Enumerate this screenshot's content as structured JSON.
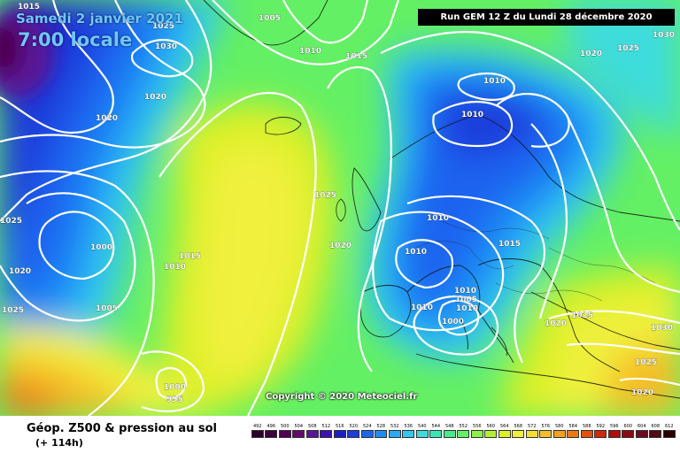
{
  "header": {
    "date": "Samedi 2 janvier 2021",
    "time": "7:00 locale",
    "run": "Run GEM 12 Z du Lundi 28 décembre 2020"
  },
  "copyright": "Copyright © 2020 Meteociel.fr",
  "footer": {
    "title": "Géop. Z500 & pression au sol",
    "subtitle": "(+ 114h)"
  },
  "legend_scale": [
    {
      "label": "492",
      "color": "#2a002a"
    },
    {
      "label": "496",
      "color": "#3c003c"
    },
    {
      "label": "500",
      "color": "#500050"
    },
    {
      "label": "504",
      "color": "#640a6e"
    },
    {
      "label": "508",
      "color": "#5a1496"
    },
    {
      "label": "512",
      "color": "#3c14b4"
    },
    {
      "label": "516",
      "color": "#1e1ec8"
    },
    {
      "label": "520",
      "color": "#1e3cdc"
    },
    {
      "label": "524",
      "color": "#1e64f0"
    },
    {
      "label": "528",
      "color": "#1e8cf5"
    },
    {
      "label": "532",
      "color": "#28aaf5"
    },
    {
      "label": "536",
      "color": "#32c8f0"
    },
    {
      "label": "540",
      "color": "#3cdcdc"
    },
    {
      "label": "544",
      "color": "#3ce6b4"
    },
    {
      "label": "548",
      "color": "#46eb8c"
    },
    {
      "label": "552",
      "color": "#64f064"
    },
    {
      "label": "556",
      "color": "#8cf046"
    },
    {
      "label": "560",
      "color": "#b4f032"
    },
    {
      "label": "564",
      "color": "#dcf028"
    },
    {
      "label": "568",
      "color": "#f0f03c"
    },
    {
      "label": "572",
      "color": "#f5dc32"
    },
    {
      "label": "576",
      "color": "#f5be28"
    },
    {
      "label": "580",
      "color": "#f5a01e"
    },
    {
      "label": "584",
      "color": "#f07814"
    },
    {
      "label": "588",
      "color": "#e6500a"
    },
    {
      "label": "592",
      "color": "#d2280a"
    },
    {
      "label": "596",
      "color": "#b40a0a"
    },
    {
      "label": "600",
      "color": "#8c0a14"
    },
    {
      "label": "604",
      "color": "#6e0a1e"
    },
    {
      "label": "608",
      "color": "#500a14"
    },
    {
      "label": "612",
      "color": "#280000"
    }
  ],
  "isobar_labels": [
    {
      "id": "iso-1015-a",
      "text": "1015"
    },
    {
      "id": "iso-1025-a",
      "text": "1025"
    },
    {
      "id": "iso-1030-a",
      "text": "1030"
    },
    {
      "id": "iso-1020-a",
      "text": "1020"
    },
    {
      "id": "iso-1020-b",
      "text": "1020"
    },
    {
      "id": "iso-1005-a",
      "text": "1005"
    },
    {
      "id": "iso-1010-a",
      "text": "1010"
    },
    {
      "id": "iso-1015-b",
      "text": "1015"
    },
    {
      "id": "iso-1020-c",
      "text": "1020"
    },
    {
      "id": "iso-1025-b",
      "text": "1025"
    },
    {
      "id": "iso-1030-b",
      "text": "1030"
    },
    {
      "id": "iso-1010-b",
      "text": "1010"
    },
    {
      "id": "iso-1010-c",
      "text": "1010"
    },
    {
      "id": "iso-1025-c",
      "text": "1025"
    },
    {
      "id": "iso-1020-d",
      "text": "1020"
    },
    {
      "id": "iso-1000-a",
      "text": "1000"
    },
    {
      "id": "iso-1015-c",
      "text": "1015"
    },
    {
      "id": "iso-1010-d",
      "text": "1010"
    },
    {
      "id": "iso-1025-d",
      "text": "1025"
    },
    {
      "id": "iso-1005-b",
      "text": "1005"
    },
    {
      "id": "iso-1025-e",
      "text": "1025"
    },
    {
      "id": "iso-1020-e",
      "text": "1020"
    },
    {
      "id": "iso-1010-e",
      "text": "1010"
    },
    {
      "id": "iso-1010-f",
      "text": "1010"
    },
    {
      "id": "iso-1015-d",
      "text": "1015"
    },
    {
      "id": "iso-1010-g",
      "text": "1010"
    },
    {
      "id": "iso-1010-h",
      "text": "1010"
    },
    {
      "id": "iso-1005-c",
      "text": "1005"
    },
    {
      "id": "iso-1010-i",
      "text": "1010"
    },
    {
      "id": "iso-1000-b",
      "text": "1000"
    },
    {
      "id": "iso-1025-f",
      "text": "1025"
    },
    {
      "id": "iso-1020-f",
      "text": "1020"
    },
    {
      "id": "iso-1030-c",
      "text": "1030"
    },
    {
      "id": "iso-1025-g",
      "text": "1025"
    },
    {
      "id": "iso-1020-g",
      "text": "1020"
    },
    {
      "id": "iso-1000-c",
      "text": "1000"
    },
    {
      "id": "iso-995",
      "text": "995"
    }
  ]
}
